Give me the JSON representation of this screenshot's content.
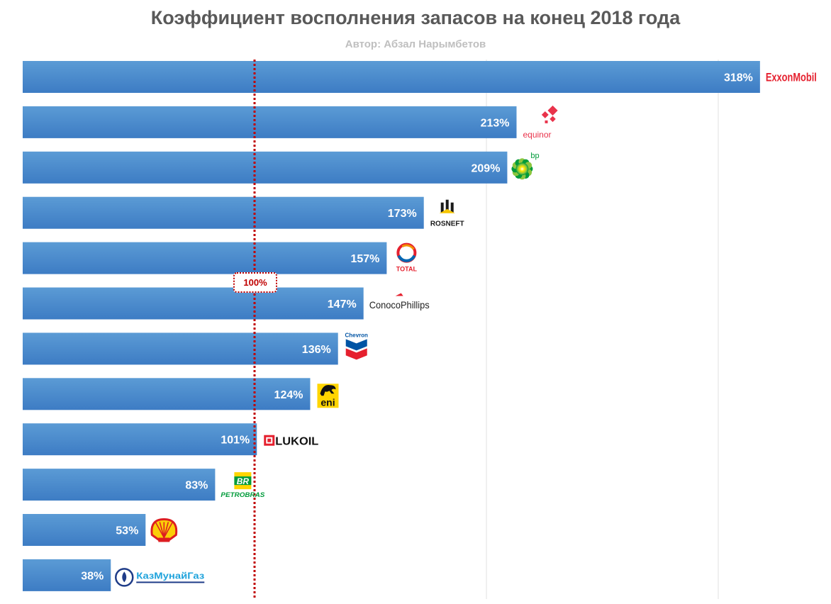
{
  "title": "Коэффициент восполнения запасов на конец 2018 года",
  "subtitle": "Автор: Абзал Нарымбетов",
  "colors": {
    "bar_top": "#5b9bd5",
    "bar_bottom": "#3d7cc4",
    "reference": "#c00000",
    "gridline": "#e0e0e0",
    "value_label": "#ffffff"
  },
  "chart_data": {
    "type": "bar",
    "orientation": "horizontal",
    "categories": [
      "ExxonMobil",
      "Equinor",
      "BP",
      "Rosneft",
      "Total",
      "ConocoPhillips",
      "Chevron",
      "Eni",
      "Lukoil",
      "Petrobras",
      "Shell",
      "KazMunayGas"
    ],
    "values": [
      318,
      213,
      209,
      173,
      157,
      147,
      136,
      124,
      101,
      83,
      53,
      38
    ],
    "value_labels": [
      "318%",
      "213%",
      "209%",
      "173%",
      "157%",
      "147%",
      "136%",
      "124%",
      "101%",
      "83%",
      "53%",
      "38%"
    ],
    "xlim": [
      0,
      350
    ],
    "gridlines": [
      200,
      300
    ],
    "reference_line": {
      "value": 100,
      "label": "100%"
    },
    "logos": [
      {
        "category": "ExxonMobil",
        "text": "ExxonMobil",
        "icon": "exxonmobil-logo"
      },
      {
        "category": "Equinor",
        "text": "equinor",
        "icon": "equinor-logo"
      },
      {
        "category": "BP",
        "text": "bp",
        "icon": "bp-helios-logo"
      },
      {
        "category": "Rosneft",
        "text": "ROSNEFT",
        "icon": "rosneft-logo"
      },
      {
        "category": "Total",
        "text": "TOTAL",
        "icon": "total-logo"
      },
      {
        "category": "ConocoPhillips",
        "text": "ConocoPhillips",
        "icon": "conocophillips-logo"
      },
      {
        "category": "Chevron",
        "text": "Chevron",
        "icon": "chevron-logo"
      },
      {
        "category": "Eni",
        "text": "eni",
        "icon": "eni-logo"
      },
      {
        "category": "Lukoil",
        "text": "LUKOIL",
        "icon": "lukoil-logo"
      },
      {
        "category": "Petrobras",
        "text": "PETROBRAS",
        "icon": "petrobras-logo"
      },
      {
        "category": "Shell",
        "text": "",
        "icon": "shell-logo"
      },
      {
        "category": "KazMunayGas",
        "text": "КазМунайГаз",
        "icon": "kazmunaygas-logo"
      }
    ]
  }
}
